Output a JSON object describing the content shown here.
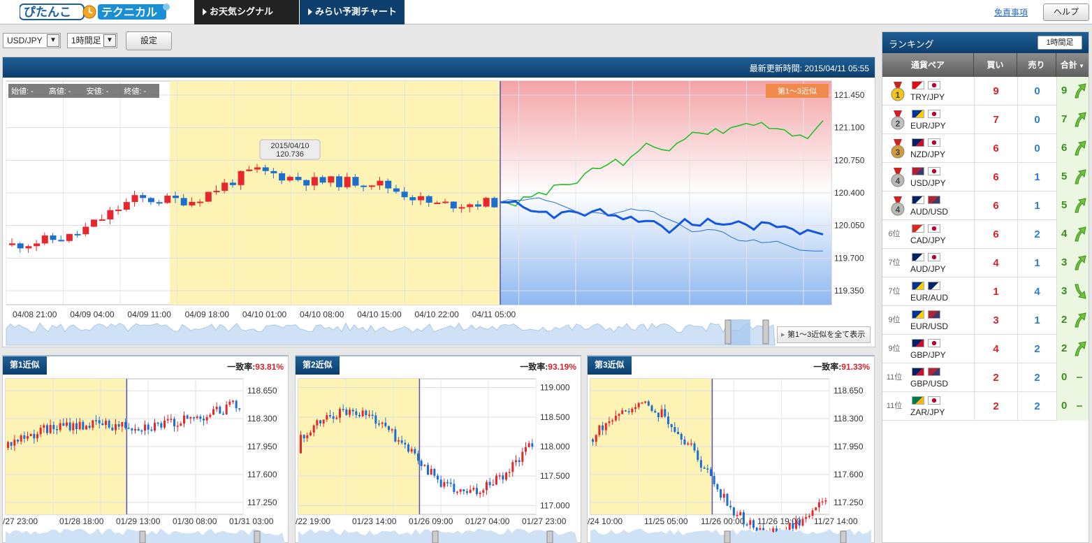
{
  "app": {
    "logo_text_1": "ぴたんこ",
    "logo_text_2": "テクニカル"
  },
  "nav": {
    "tab1": "お天気シグナル",
    "tab2": "みらい予測チャート",
    "disclaimer": "免責事項",
    "help": "ヘルプ"
  },
  "controls": {
    "pair": "USD/JPY",
    "timeframe": "1時間足",
    "settings": "設定"
  },
  "main_chart": {
    "updated_label": "最新更新時間:",
    "updated_value": "2015/04/11 05:55",
    "ohlc": "始値: -　　高値: -　　安値: -　　終値: -",
    "badge": "第1～3近似",
    "tooltip_date": "2015/04/10",
    "tooltip_value": "120.736",
    "show_all": "第1～3近似を全て表示",
    "y_ticks": [
      "121.450",
      "121.100",
      "120.750",
      "120.400",
      "120.050",
      "119.700",
      "119.350"
    ],
    "x_ticks": [
      "04/08 21:00",
      "04/09 04:00",
      "04/09 11:00",
      "04/09 18:00",
      "04/10 01:00",
      "04/10 08:00",
      "04/10 15:00",
      "04/10 22:00",
      "04/11 05:00"
    ],
    "colors": {
      "up": "#e8262d",
      "down": "#1c6fd1",
      "match": "#fdf3b5",
      "forecast_up": "#ff9999",
      "forecast_down": "#8fb8f0"
    }
  },
  "chart_data": {
    "type": "line",
    "title": "USD/JPY 1時間足",
    "xlabel": "",
    "ylabel": "",
    "ylim": [
      119.2,
      121.6
    ],
    "x": [
      "04/08 21:00",
      "04/09 04:00",
      "04/09 11:00",
      "04/09 18:00",
      "04/10 01:00",
      "04/10 08:00",
      "04/10 15:00",
      "04/10 22:00",
      "04/11 05:00"
    ],
    "series": [
      {
        "name": "",
        "values": [
          119.84,
          119.93,
          120.33,
          120.32,
          120.64,
          120.52,
          120.52,
          120.27,
          120.3
        ]
      }
    ]
  },
  "similar": [
    {
      "tab": "第1近似",
      "rate_label": "一致率:",
      "rate": "93.81%",
      "y_ticks": [
        "118.650",
        "118.300",
        "117.950",
        "117.600",
        "117.250"
      ],
      "x_ticks": [
        "/27 23:00",
        "01/28 18:00",
        "01/29 13:00",
        "01/30 08:00",
        "01/31 03:00"
      ]
    },
    {
      "tab": "第2近似",
      "rate_label": "一致率:",
      "rate": "93.19%",
      "y_ticks": [
        "119.000",
        "118.500",
        "118.000",
        "117.500",
        "117.000"
      ],
      "x_ticks": [
        "/22 19:00",
        "01/23 14:00",
        "01/26 09:00",
        "01/27 04:00",
        "01/27 23:00"
      ]
    },
    {
      "tab": "第3近似",
      "rate_label": "一致率:",
      "rate": "91.33%",
      "y_ticks": [
        "118.650",
        "118.300",
        "117.950",
        "117.600",
        "117.250"
      ],
      "x_ticks": [
        "/24 10:00",
        "11/25 05:00",
        "11/26 00:00",
        "11/26 19:00",
        "11/27 14:00"
      ]
    }
  ],
  "ranking": {
    "title": "ランキング",
    "timeframe": "1時間足",
    "columns": {
      "pair": "通貨ペア",
      "buy": "買い",
      "sell": "売り",
      "total": "合計"
    },
    "rows": [
      {
        "pos": "1",
        "pair": "TRY/JPY",
        "buy": "9",
        "sell": "0",
        "total": "9",
        "trend": "up"
      },
      {
        "pos": "2",
        "pair": "EUR/JPY",
        "buy": "7",
        "sell": "0",
        "total": "7",
        "trend": "up"
      },
      {
        "pos": "3",
        "pair": "NZD/JPY",
        "buy": "6",
        "sell": "0",
        "total": "6",
        "trend": "up"
      },
      {
        "pos": "4",
        "pair": "USD/JPY",
        "buy": "6",
        "sell": "1",
        "total": "5",
        "trend": "up"
      },
      {
        "pos": "4",
        "pair": "AUD/USD",
        "buy": "6",
        "sell": "1",
        "total": "5",
        "trend": "up"
      },
      {
        "pos": "6位",
        "pair": "CAD/JPY",
        "buy": "6",
        "sell": "2",
        "total": "4",
        "trend": "up"
      },
      {
        "pos": "7位",
        "pair": "AUD/JPY",
        "buy": "4",
        "sell": "1",
        "total": "3",
        "trend": "up"
      },
      {
        "pos": "7位",
        "pair": "EUR/AUD",
        "buy": "1",
        "sell": "4",
        "total": "3",
        "trend": "down"
      },
      {
        "pos": "9位",
        "pair": "EUR/USD",
        "buy": "3",
        "sell": "1",
        "total": "2",
        "trend": "up"
      },
      {
        "pos": "9位",
        "pair": "GBP/JPY",
        "buy": "4",
        "sell": "2",
        "total": "2",
        "trend": "up"
      },
      {
        "pos": "11位",
        "pair": "GBP/USD",
        "buy": "2",
        "sell": "2",
        "total": "0",
        "trend": "flat"
      },
      {
        "pos": "11位",
        "pair": "ZAR/JPY",
        "buy": "2",
        "sell": "2",
        "total": "0",
        "trend": "flat"
      }
    ],
    "flags": {
      "TRY/JPY": [
        "tr",
        "jp"
      ],
      "EUR/JPY": [
        "eu",
        "jp"
      ],
      "NZD/JPY": [
        "nz",
        "jp"
      ],
      "USD/JPY": [
        "us",
        "jp"
      ],
      "AUD/USD": [
        "au",
        "us"
      ],
      "CAD/JPY": [
        "ca",
        "jp"
      ],
      "AUD/JPY": [
        "au",
        "jp"
      ],
      "EUR/AUD": [
        "eu",
        "au"
      ],
      "EUR/USD": [
        "eu",
        "us"
      ],
      "GBP/JPY": [
        "gb",
        "jp"
      ],
      "GBP/USD": [
        "gb",
        "us"
      ],
      "ZAR/JPY": [
        "za",
        "jp"
      ]
    }
  }
}
